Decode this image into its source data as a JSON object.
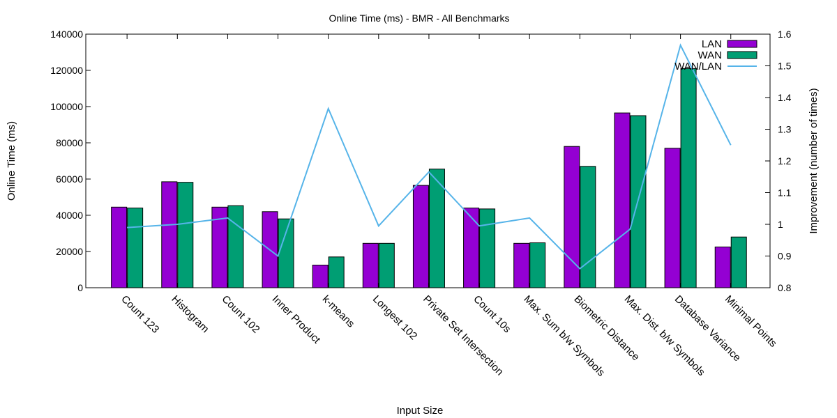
{
  "chart_data": {
    "type": "bar",
    "title": "Online Time (ms) - BMR - All Benchmarks",
    "xlabel": "Input Size",
    "ylabel": "Online Time (ms)",
    "y2label": "Improvement (number of times)",
    "categories": [
      "Count 123",
      "Histogram",
      "Count 102",
      "Inner Product",
      "k-means",
      "Longest 102",
      "Private Set Intersection",
      "Count 10s",
      "Max. Sum b/w Symbols",
      "Biometric Distance",
      "Max. Dist. b/w Symbols",
      "Database Variance",
      "Minimal Points"
    ],
    "series": [
      {
        "name": "LAN",
        "axis": "left",
        "kind": "bar",
        "color": "#9400d3",
        "values": [
          44500,
          58500,
          44500,
          42000,
          12500,
          24500,
          56500,
          44000,
          24500,
          78000,
          96500,
          77000,
          22500
        ]
      },
      {
        "name": "WAN",
        "axis": "left",
        "kind": "bar",
        "color": "#009e73",
        "values": [
          44000,
          58200,
          45300,
          38000,
          17000,
          24500,
          65500,
          43500,
          24800,
          67000,
          95000,
          121000,
          28000
        ]
      },
      {
        "name": "WAN/LAN",
        "axis": "right",
        "kind": "line",
        "color": "#56b4e9",
        "values": [
          0.99,
          1.0,
          1.02,
          0.9,
          1.365,
          0.995,
          1.165,
          0.995,
          1.02,
          0.86,
          0.985,
          1.565,
          1.25
        ]
      }
    ],
    "ylim": [
      0,
      140000
    ],
    "yticks": [
      "0",
      "20000",
      "40000",
      "60000",
      "80000",
      "100000",
      "120000",
      "140000"
    ],
    "y2lim": [
      0.8,
      1.6
    ],
    "y2ticks": [
      "0.8",
      "0.9",
      "1",
      "1.1",
      "1.2",
      "1.3",
      "1.4",
      "1.5",
      "1.6"
    ],
    "grid": false,
    "legend_position": "top-right"
  }
}
